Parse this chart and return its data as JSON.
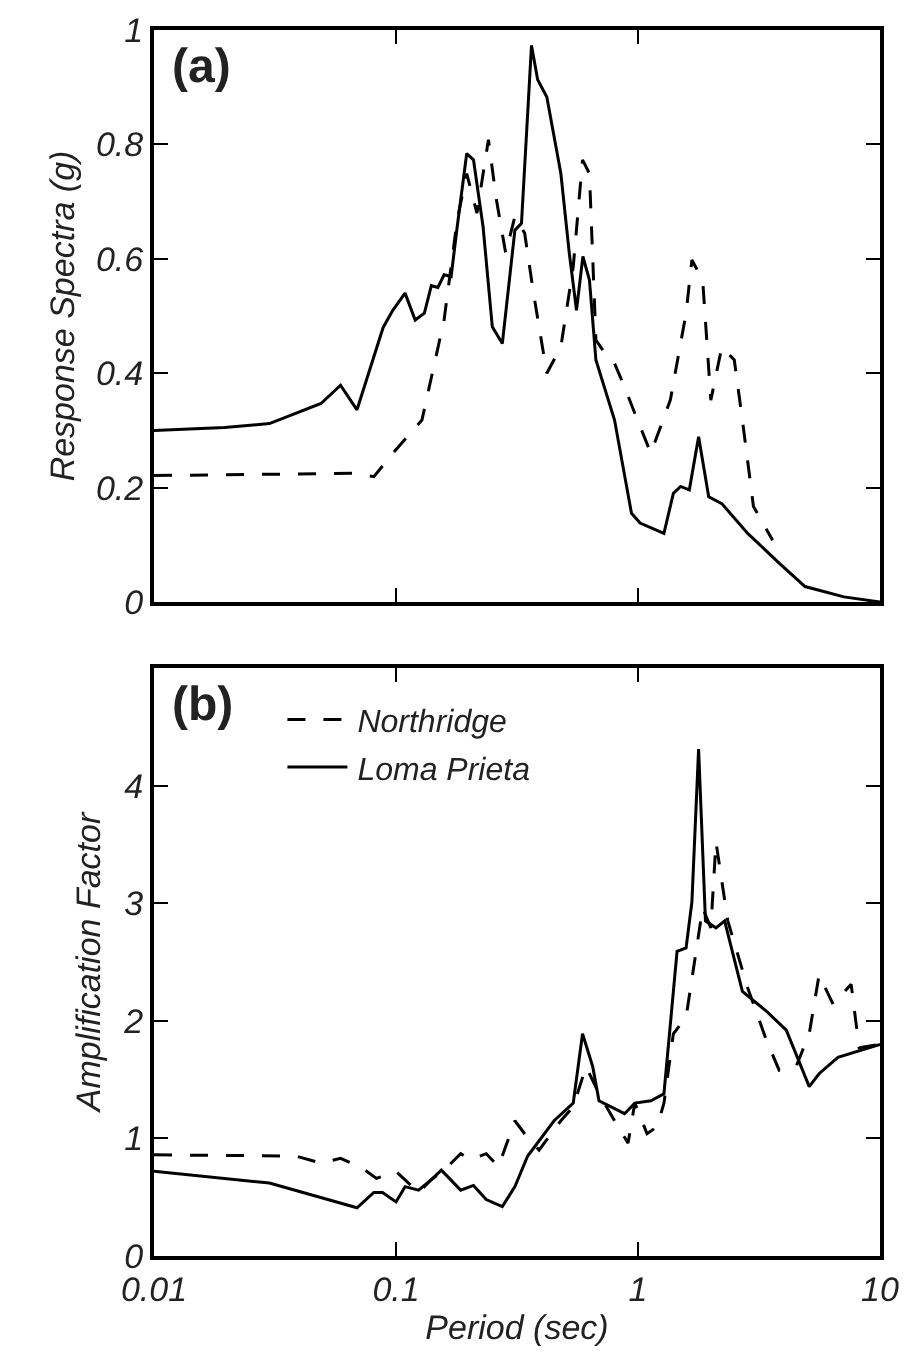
{
  "chart_data": [
    {
      "type": "line",
      "title": "(a)",
      "ylabel": "Response Spectra (g)",
      "log": "x",
      "xlim": [
        0.01,
        10
      ],
      "xticks": [
        0.01,
        0.1,
        1,
        10
      ],
      "ylim": [
        0,
        1
      ],
      "yticks": [
        0,
        0.2,
        0.4,
        0.6,
        0.8,
        1
      ],
      "tick_labels": "y",
      "grid": false,
      "legend": false,
      "series": [
        {
          "color": "#000000",
          "line_style": "dashed",
          "x": [
            0.01,
            0.067,
            0.081,
            0.097,
            0.128,
            0.158,
            0.179,
            0.196,
            0.216,
            0.241,
            0.26,
            0.284,
            0.31,
            0.34,
            0.37,
            0.42,
            0.48,
            0.54,
            0.59,
            0.63,
            0.67,
            0.73,
            0.8,
            0.88,
            0.97,
            1.13,
            1.36,
            1.58,
            1.67,
            1.85,
            2.0,
            2.22,
            2.5,
            2.7,
            3.0,
            3.6
          ],
          "values": [
            0.221,
            0.225,
            0.219,
            0.26,
            0.318,
            0.493,
            0.668,
            0.749,
            0.68,
            0.808,
            0.703,
            0.61,
            0.674,
            0.645,
            0.54,
            0.4,
            0.446,
            0.586,
            0.773,
            0.749,
            0.458,
            0.435,
            0.417,
            0.376,
            0.33,
            0.26,
            0.353,
            0.505,
            0.598,
            0.563,
            0.353,
            0.446,
            0.423,
            0.318,
            0.167,
            0.108
          ]
        },
        {
          "color": "#000000",
          "line_style": "solid",
          "x": [
            0.01,
            0.0196,
            0.03,
            0.049,
            0.059,
            0.069,
            0.0885,
            0.097,
            0.109,
            0.12,
            0.131,
            0.14,
            0.149,
            0.158,
            0.169,
            0.179,
            0.196,
            0.209,
            0.229,
            0.25,
            0.275,
            0.31,
            0.33,
            0.363,
            0.385,
            0.42,
            0.48,
            0.52,
            0.557,
            0.592,
            0.63,
            0.67,
            0.8,
            0.94,
            1.02,
            1.28,
            1.4,
            1.5,
            1.63,
            1.78,
            1.96,
            2.22,
            2.84,
            3.83,
            4.9,
            7.1,
            10
          ],
          "values": [
            0.3,
            0.305,
            0.312,
            0.347,
            0.379,
            0.336,
            0.48,
            0.51,
            0.54,
            0.493,
            0.505,
            0.553,
            0.55,
            0.572,
            0.569,
            0.656,
            0.784,
            0.773,
            0.656,
            0.481,
            0.452,
            0.65,
            0.662,
            0.973,
            0.913,
            0.883,
            0.749,
            0.61,
            0.51,
            0.604,
            0.563,
            0.423,
            0.318,
            0.155,
            0.138,
            0.12,
            0.19,
            0.202,
            0.196,
            0.289,
            0.184,
            0.172,
            0.12,
            0.068,
            0.027,
            0.009,
            0.0
          ]
        }
      ]
    },
    {
      "type": "line",
      "title": "(b)",
      "xlabel": "Period (sec)",
      "ylabel": "Amplification Factor",
      "log": "x",
      "xlim": [
        0.01,
        10
      ],
      "xticks": [
        0.01,
        0.1,
        1,
        10
      ],
      "ylim": [
        0,
        5
      ],
      "yticks": [
        0,
        1,
        2,
        3,
        4
      ],
      "grid": false,
      "legend": "top left",
      "series": [
        {
          "name": "Northridge",
          "color": "#000000",
          "line_style": "dashed",
          "x": [
            0.01,
            0.0386,
            0.049,
            0.059,
            0.071,
            0.083,
            0.1,
            0.124,
            0.14,
            0.158,
            0.185,
            0.203,
            0.236,
            0.265,
            0.31,
            0.34,
            0.39,
            0.48,
            0.54,
            0.61,
            0.69,
            0.8,
            0.91,
            0.97,
            1.09,
            1.2,
            1.28,
            1.4,
            1.58,
            1.85,
            2.0,
            2.1,
            2.35,
            2.84,
            3.4,
            3.83,
            4.5,
            5.1,
            5.6,
            6.4,
            7.6,
            8.2,
            10
          ],
          "values": [
            0.86,
            0.85,
            0.79,
            0.83,
            0.76,
            0.66,
            0.72,
            0.54,
            0.65,
            0.73,
            0.87,
            0.82,
            0.87,
            0.76,
            1.15,
            1.04,
            0.9,
            1.15,
            1.27,
            1.61,
            1.38,
            1.15,
            0.96,
            1.3,
            1.04,
            1.1,
            1.3,
            1.89,
            2.03,
            2.96,
            2.79,
            3.52,
            2.85,
            2.28,
            1.83,
            1.58,
            1.61,
            1.89,
            2.39,
            2.14,
            2.31,
            1.77,
            1.8
          ]
        },
        {
          "name": "Loma Prieta",
          "color": "#000000",
          "line_style": "solid",
          "x": [
            0.01,
            0.03,
            0.069,
            0.081,
            0.088,
            0.1,
            0.109,
            0.124,
            0.14,
            0.154,
            0.185,
            0.209,
            0.236,
            0.275,
            0.31,
            0.35,
            0.45,
            0.54,
            0.59,
            0.65,
            0.69,
            0.88,
            0.97,
            1.13,
            1.28,
            1.45,
            1.58,
            1.67,
            1.78,
            1.9,
            2.1,
            2.28,
            2.7,
            3.4,
            4.1,
            5.1,
            5.6,
            6.7,
            10
          ],
          "values": [
            0.72,
            0.62,
            0.41,
            0.54,
            0.54,
            0.46,
            0.59,
            0.56,
            0.65,
            0.73,
            0.56,
            0.6,
            0.48,
            0.42,
            0.59,
            0.85,
            1.15,
            1.3,
            1.89,
            1.61,
            1.32,
            1.21,
            1.3,
            1.32,
            1.38,
            2.59,
            2.62,
            3.01,
            4.31,
            2.85,
            2.79,
            2.85,
            2.25,
            2.08,
            1.92,
            1.44,
            1.55,
            1.69,
            1.8
          ]
        }
      ]
    }
  ]
}
